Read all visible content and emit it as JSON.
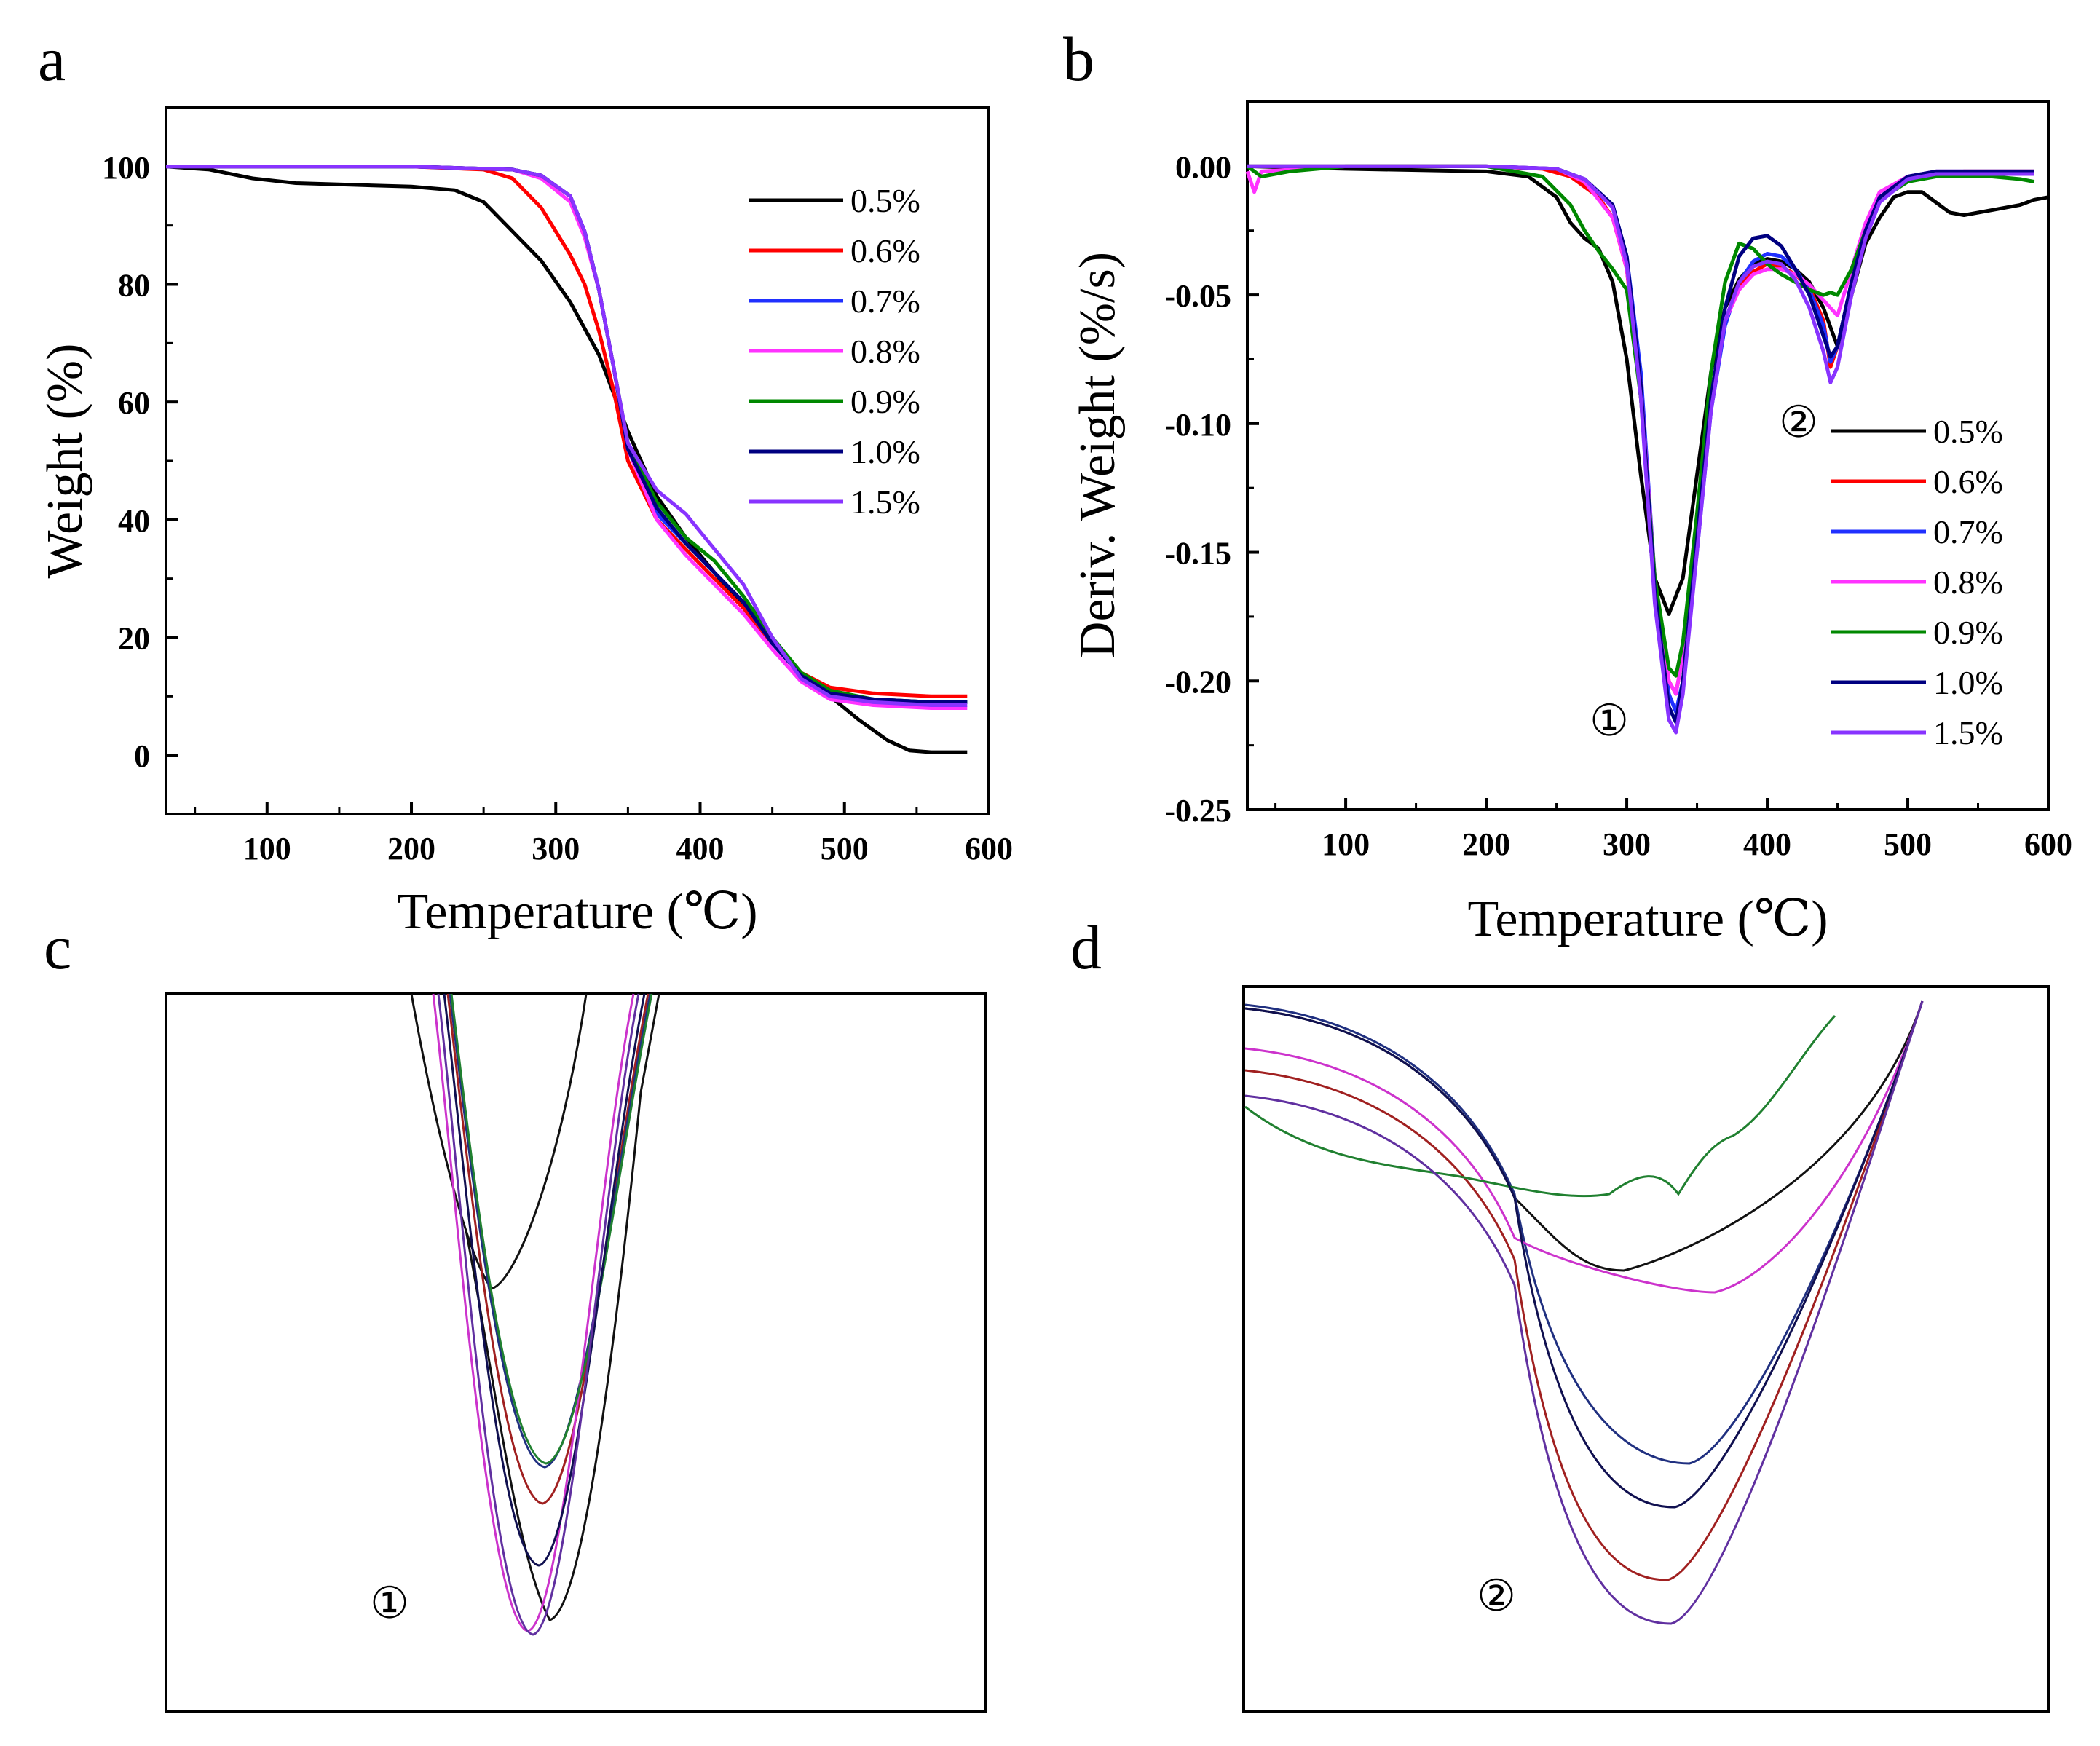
{
  "figure": {
    "panels": [
      {
        "letter": "a"
      },
      {
        "letter": "b"
      },
      {
        "letter": "c"
      },
      {
        "letter": "d"
      }
    ]
  },
  "chart_data": [
    {
      "panel": "a",
      "type": "line",
      "title": "",
      "xlabel": "Temperature (℃)",
      "ylabel": "Weight (%)",
      "xlim": [
        30,
        600
      ],
      "ylim": [
        -10,
        110
      ],
      "xticks": [
        "100",
        "200",
        "300",
        "400",
        "500",
        "600"
      ],
      "yticks": [
        "0",
        "20",
        "40",
        "60",
        "80",
        "100"
      ],
      "legend_position": "upper-right",
      "series": [
        {
          "name": "0.5%",
          "color": "#000000",
          "x": [
            30,
            60,
            90,
            120,
            160,
            200,
            230,
            250,
            270,
            290,
            310,
            330,
            350,
            370,
            390,
            410,
            430,
            450,
            470,
            490,
            510,
            530,
            545,
            560,
            580,
            585
          ],
          "y": [
            100,
            99.5,
            98,
            97.2,
            96.9,
            96.6,
            96.0,
            94,
            89,
            84,
            77,
            68,
            55,
            44,
            37,
            31,
            25,
            19,
            14,
            10,
            6,
            2.5,
            0.8,
            0.5,
            0.5,
            0.5
          ]
        },
        {
          "name": "0.6%",
          "color": "#ff0000",
          "x": [
            30,
            100,
            200,
            250,
            270,
            290,
            300,
            310,
            320,
            330,
            340,
            350,
            370,
            390,
            410,
            430,
            450,
            470,
            490,
            520,
            560,
            585
          ],
          "y": [
            100,
            100,
            100,
            99.5,
            98,
            93,
            89,
            85,
            80,
            72,
            62,
            50,
            40,
            35,
            30,
            25,
            19,
            14,
            11.5,
            10.5,
            10,
            10
          ]
        },
        {
          "name": "0.7%",
          "color": "#2030ff",
          "x": [
            30,
            100,
            200,
            270,
            290,
            310,
            320,
            330,
            340,
            350,
            370,
            390,
            410,
            430,
            450,
            470,
            490,
            520,
            560,
            585
          ],
          "y": [
            100,
            100,
            100,
            99.5,
            98.5,
            95,
            89,
            79,
            66,
            52,
            41,
            36,
            31,
            26,
            19,
            13.5,
            10.5,
            9.5,
            9,
            9
          ]
        },
        {
          "name": "0.8%",
          "color": "#ff33ff",
          "x": [
            30,
            100,
            200,
            270,
            290,
            310,
            320,
            330,
            340,
            350,
            370,
            390,
            410,
            430,
            450,
            470,
            490,
            520,
            560,
            585
          ],
          "y": [
            100,
            100,
            100,
            99.5,
            98,
            94,
            88,
            79,
            66,
            52,
            40,
            34,
            29,
            24,
            18,
            12.5,
            9.5,
            8.5,
            8,
            8
          ]
        },
        {
          "name": "0.9%",
          "color": "#008800",
          "x": [
            30,
            100,
            200,
            270,
            290,
            310,
            320,
            330,
            340,
            350,
            370,
            390,
            410,
            430,
            450,
            470,
            490,
            520,
            560,
            585
          ],
          "y": [
            100,
            100,
            100,
            99.5,
            98.5,
            95,
            89,
            79,
            66,
            53,
            43,
            37,
            33,
            27,
            20,
            14,
            11,
            9.5,
            9,
            9
          ]
        },
        {
          "name": "1.0%",
          "color": "#000080",
          "x": [
            30,
            100,
            200,
            270,
            290,
            310,
            320,
            330,
            340,
            350,
            370,
            390,
            410,
            430,
            450,
            470,
            490,
            520,
            560,
            585
          ],
          "y": [
            100,
            100,
            100,
            99.5,
            98.5,
            95,
            89,
            79,
            66,
            52,
            42,
            36,
            31,
            26,
            19,
            13.5,
            10.5,
            9.5,
            9,
            9
          ]
        },
        {
          "name": "1.5%",
          "color": "#8833ff",
          "x": [
            30,
            100,
            200,
            270,
            290,
            310,
            320,
            330,
            340,
            350,
            370,
            390,
            410,
            430,
            450,
            470,
            490,
            520,
            560,
            585
          ],
          "y": [
            100,
            100,
            100,
            99.5,
            98.5,
            95,
            89,
            79,
            66,
            53,
            45,
            41,
            35,
            29,
            20,
            13,
            10,
            9,
            8.5,
            8.5
          ]
        }
      ]
    },
    {
      "panel": "b",
      "type": "line",
      "title": "",
      "xlabel": "Temperature (℃)",
      "ylabel": "Deriv. Weight (%/s)",
      "xlim": [
        30,
        600
      ],
      "ylim": [
        -0.25,
        0.025
      ],
      "xticks": [
        "100",
        "200",
        "300",
        "400",
        "500",
        "600"
      ],
      "yticks": [
        "0.00",
        "-0.05",
        "-0.10",
        "-0.15",
        "-0.20",
        "-0.25"
      ],
      "legend_position": "lower-right",
      "annotations": [
        "②",
        "①"
      ],
      "series": [
        {
          "name": "0.5%",
          "color": "#000000",
          "x": [
            30,
            100,
            200,
            230,
            250,
            260,
            270,
            280,
            290,
            300,
            310,
            320,
            330,
            340,
            350,
            360,
            370,
            380,
            390,
            400,
            410,
            420,
            430,
            440,
            450,
            460,
            470,
            480,
            490,
            500,
            510,
            520,
            530,
            540,
            560,
            580,
            590,
            600
          ],
          "y": [
            0,
            -0.001,
            -0.002,
            -0.004,
            -0.012,
            -0.022,
            -0.028,
            -0.032,
            -0.045,
            -0.075,
            -0.12,
            -0.16,
            -0.174,
            -0.16,
            -0.12,
            -0.08,
            -0.055,
            -0.044,
            -0.038,
            -0.036,
            -0.037,
            -0.04,
            -0.045,
            -0.055,
            -0.07,
            -0.05,
            -0.03,
            -0.02,
            -0.012,
            -0.01,
            -0.01,
            -0.014,
            -0.018,
            -0.019,
            -0.017,
            -0.015,
            -0.013,
            -0.012
          ]
        },
        {
          "name": "0.6%",
          "color": "#ff0000",
          "x": [
            30,
            100,
            200,
            240,
            260,
            280,
            290,
            300,
            310,
            320,
            330,
            335,
            340,
            350,
            360,
            370,
            380,
            390,
            400,
            410,
            420,
            430,
            440,
            445,
            450,
            460,
            470,
            480,
            500,
            520,
            540,
            560,
            580,
            590
          ],
          "y": [
            0,
            0,
            0,
            -0.001,
            -0.004,
            -0.012,
            -0.02,
            -0.04,
            -0.09,
            -0.16,
            -0.2,
            -0.205,
            -0.19,
            -0.14,
            -0.09,
            -0.06,
            -0.046,
            -0.041,
            -0.038,
            -0.039,
            -0.042,
            -0.047,
            -0.06,
            -0.078,
            -0.07,
            -0.045,
            -0.025,
            -0.012,
            -0.005,
            -0.003,
            -0.002,
            -0.002,
            -0.002,
            -0.002
          ]
        },
        {
          "name": "0.7%",
          "color": "#2030ff",
          "x": [
            30,
            100,
            200,
            250,
            270,
            290,
            300,
            310,
            320,
            330,
            335,
            340,
            350,
            360,
            370,
            380,
            390,
            400,
            410,
            420,
            430,
            440,
            445,
            450,
            460,
            470,
            480,
            500,
            520,
            540,
            560,
            580,
            590
          ],
          "y": [
            0,
            0,
            0,
            -0.001,
            -0.005,
            -0.015,
            -0.035,
            -0.08,
            -0.16,
            -0.205,
            -0.212,
            -0.2,
            -0.15,
            -0.095,
            -0.062,
            -0.045,
            -0.037,
            -0.034,
            -0.035,
            -0.04,
            -0.048,
            -0.062,
            -0.076,
            -0.07,
            -0.045,
            -0.025,
            -0.012,
            -0.004,
            -0.002,
            -0.002,
            -0.002,
            -0.002,
            -0.002
          ]
        },
        {
          "name": "0.8%",
          "color": "#ff33ff",
          "x": [
            30,
            35,
            40,
            100,
            200,
            250,
            270,
            290,
            300,
            310,
            320,
            330,
            335,
            340,
            350,
            360,
            370,
            380,
            390,
            400,
            410,
            420,
            430,
            440,
            450,
            460,
            470,
            480,
            500,
            520,
            540,
            560,
            580,
            590
          ],
          "y": [
            -0.002,
            -0.01,
            -0.002,
            0,
            0,
            -0.001,
            -0.006,
            -0.02,
            -0.04,
            -0.085,
            -0.16,
            -0.2,
            -0.205,
            -0.19,
            -0.14,
            -0.09,
            -0.06,
            -0.048,
            -0.042,
            -0.04,
            -0.04,
            -0.042,
            -0.046,
            -0.052,
            -0.058,
            -0.04,
            -0.022,
            -0.01,
            -0.004,
            -0.002,
            -0.002,
            -0.002,
            -0.002,
            -0.002
          ]
        },
        {
          "name": "0.9%",
          "color": "#008800",
          "x": [
            30,
            40,
            60,
            100,
            200,
            240,
            260,
            270,
            280,
            290,
            300,
            310,
            320,
            330,
            335,
            340,
            350,
            360,
            370,
            380,
            390,
            400,
            410,
            420,
            430,
            440,
            445,
            450,
            460,
            470,
            480,
            500,
            520,
            540,
            560,
            580,
            590
          ],
          "y": [
            0,
            -0.004,
            -0.002,
            0,
            0,
            -0.004,
            -0.015,
            -0.025,
            -0.033,
            -0.04,
            -0.048,
            -0.09,
            -0.16,
            -0.195,
            -0.198,
            -0.185,
            -0.135,
            -0.08,
            -0.045,
            -0.03,
            -0.032,
            -0.038,
            -0.042,
            -0.045,
            -0.048,
            -0.05,
            -0.049,
            -0.05,
            -0.04,
            -0.025,
            -0.013,
            -0.006,
            -0.004,
            -0.004,
            -0.004,
            -0.005,
            -0.006
          ]
        },
        {
          "name": "1.0%",
          "color": "#000080",
          "x": [
            30,
            100,
            200,
            250,
            270,
            290,
            300,
            310,
            320,
            330,
            335,
            340,
            350,
            360,
            370,
            380,
            390,
            400,
            410,
            420,
            430,
            440,
            445,
            450,
            460,
            470,
            480,
            500,
            520,
            540,
            560,
            580,
            590
          ],
          "y": [
            0,
            0,
            0,
            -0.001,
            -0.005,
            -0.015,
            -0.035,
            -0.085,
            -0.165,
            -0.21,
            -0.216,
            -0.2,
            -0.145,
            -0.09,
            -0.055,
            -0.035,
            -0.028,
            -0.027,
            -0.031,
            -0.04,
            -0.05,
            -0.066,
            -0.074,
            -0.07,
            -0.045,
            -0.025,
            -0.012,
            -0.004,
            -0.002,
            -0.002,
            -0.002,
            -0.002,
            -0.002
          ]
        },
        {
          "name": "1.5%",
          "color": "#8833ff",
          "x": [
            30,
            100,
            200,
            250,
            270,
            290,
            300,
            310,
            320,
            330,
            335,
            340,
            350,
            360,
            370,
            380,
            390,
            400,
            410,
            420,
            430,
            440,
            445,
            450,
            460,
            470,
            480,
            500,
            520,
            540,
            560,
            580,
            590
          ],
          "y": [
            0,
            0,
            0,
            -0.001,
            -0.005,
            -0.016,
            -0.038,
            -0.09,
            -0.17,
            -0.215,
            -0.22,
            -0.205,
            -0.15,
            -0.095,
            -0.06,
            -0.045,
            -0.039,
            -0.037,
            -0.038,
            -0.044,
            -0.055,
            -0.072,
            -0.084,
            -0.078,
            -0.05,
            -0.028,
            -0.014,
            -0.005,
            -0.003,
            -0.003,
            -0.003,
            -0.003,
            -0.003
          ]
        }
      ]
    },
    {
      "panel": "c",
      "type": "line",
      "description_label": "①",
      "xlabel": "",
      "ylabel": "",
      "series": [
        {
          "name": "0.5%",
          "color": "#111111"
        },
        {
          "name": "0.6%",
          "color": "#a02020"
        },
        {
          "name": "0.7%",
          "color": "#203080"
        },
        {
          "name": "0.8%",
          "color": "#cc33cc"
        },
        {
          "name": "0.9%",
          "color": "#208030"
        },
        {
          "name": "1.0%",
          "color": "#101050"
        },
        {
          "name": "1.5%",
          "color": "#6030a0"
        }
      ]
    },
    {
      "panel": "d",
      "type": "line",
      "description_label": "②",
      "xlabel": "",
      "ylabel": "",
      "series": [
        {
          "name": "0.5%",
          "color": "#111111"
        },
        {
          "name": "0.6%",
          "color": "#a02020"
        },
        {
          "name": "0.7%",
          "color": "#203080"
        },
        {
          "name": "0.8%",
          "color": "#cc33cc"
        },
        {
          "name": "0.9%",
          "color": "#208030"
        },
        {
          "name": "1.0%",
          "color": "#101050"
        },
        {
          "name": "1.5%",
          "color": "#6030a0"
        }
      ]
    }
  ]
}
